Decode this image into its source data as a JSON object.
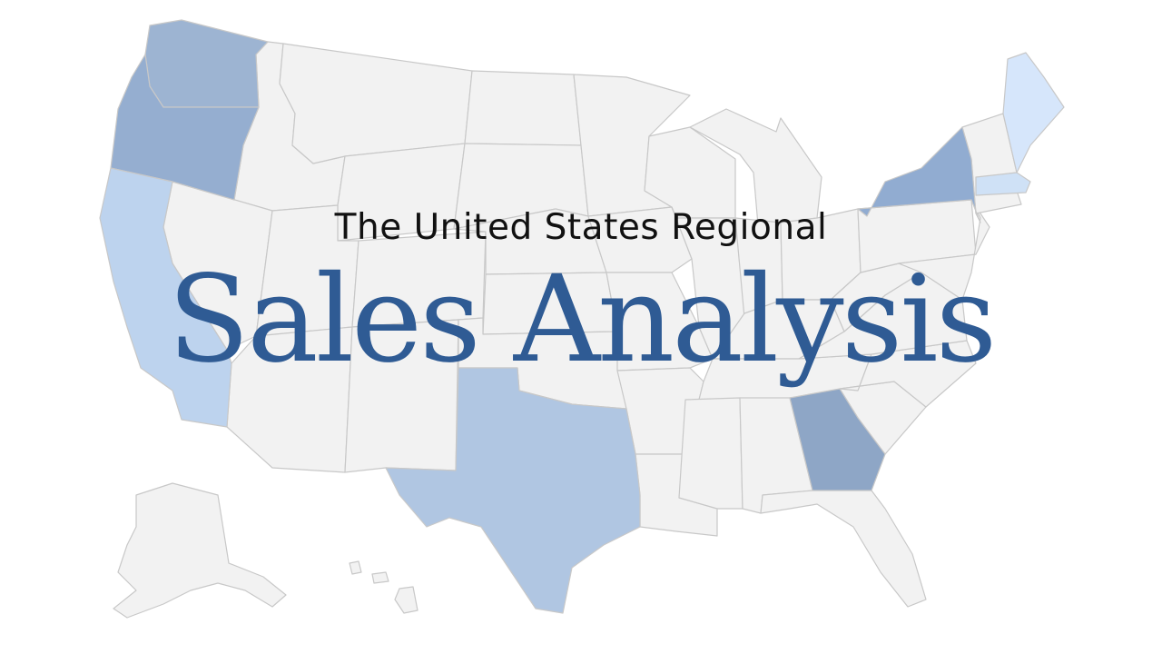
{
  "title": {
    "subtitle": "The United States Regional",
    "main": "Sales Analysis"
  },
  "colors": {
    "default_state": "#f2f2f2",
    "border": "#c8c8c8",
    "title": "#2f5b94",
    "highlighted": {
      "Washington": "#9db4d2",
      "Oregon": "#95aed0",
      "California": "#bdd3ee",
      "Texas": "#b0c6e2",
      "Georgia": "#8ea6c6",
      "New York": "#91acd1",
      "Massachusetts": "#cfe1f6",
      "Maine": "#d6e6fb"
    }
  }
}
